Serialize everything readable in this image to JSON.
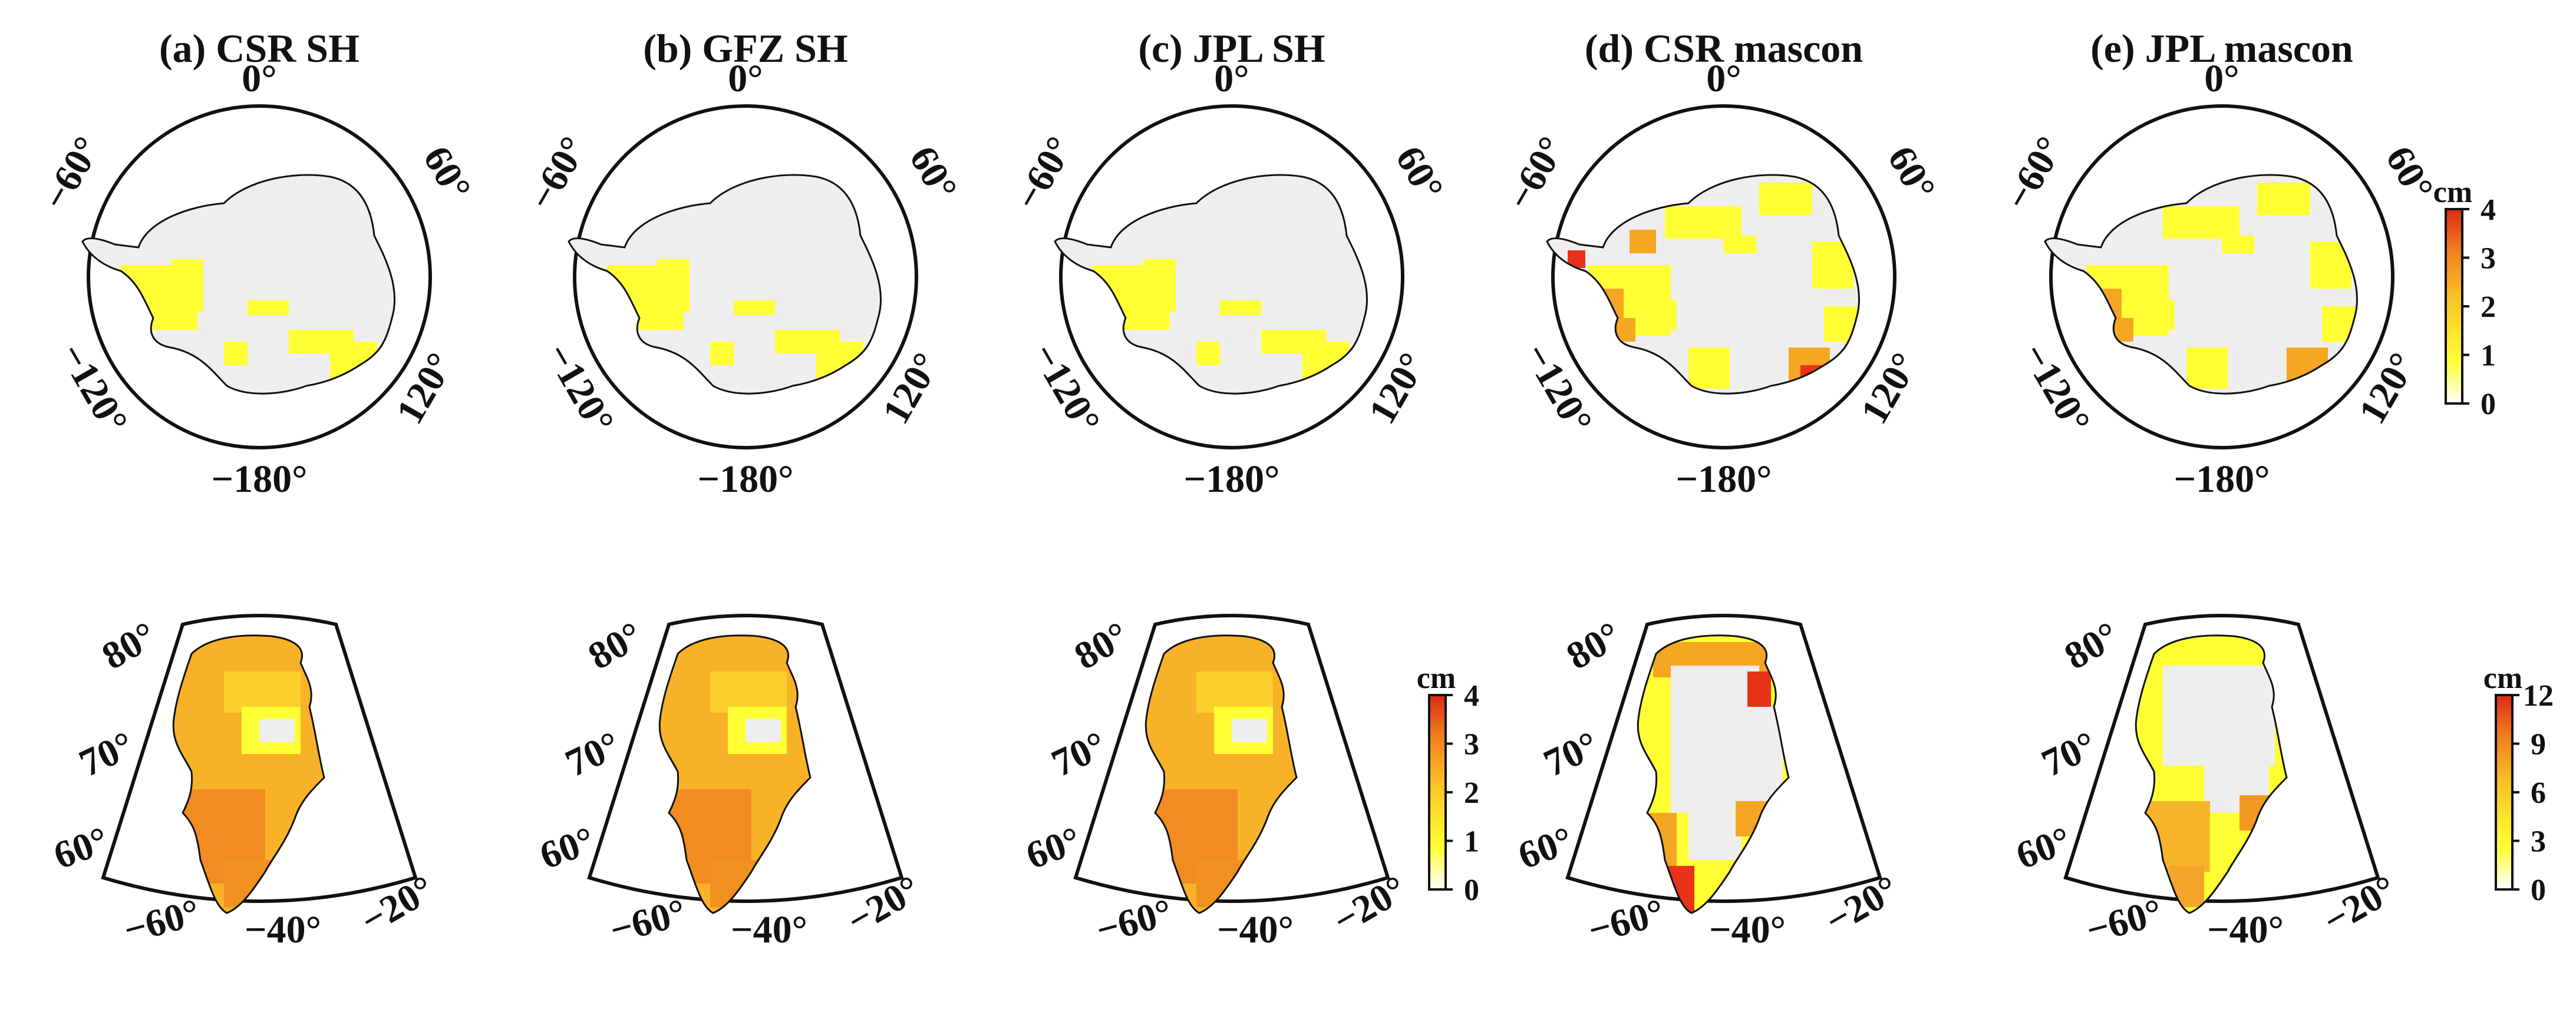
{
  "panels": [
    {
      "title": "(a) CSR SH",
      "antarctica_cmap": "sh",
      "greenland_cmap": "sh",
      "greenland_scale": 4
    },
    {
      "title": "(b) GFZ SH",
      "antarctica_cmap": "sh",
      "greenland_cmap": "sh",
      "greenland_scale": 4
    },
    {
      "title": "(c) JPL SH",
      "antarctica_cmap": "sh",
      "greenland_cmap": "sh",
      "greenland_scale": 4
    },
    {
      "title": "(d) CSR mascon",
      "antarctica_cmap": "mascon",
      "greenland_cmap": "mascon",
      "greenland_scale": 12
    },
    {
      "title": "(e) JPL mascon",
      "antarctica_cmap": "mascon_jpl",
      "greenland_cmap": "mascon_jpl",
      "greenland_scale": 12
    }
  ],
  "antarctica_labels": {
    "top": "0°",
    "left": "−60°",
    "right": "60°",
    "lower_left": "−120°",
    "lower_right": "120°",
    "bottom": "−180°"
  },
  "greenland_labels": {
    "lat_80": "80°",
    "lat_70": "70°",
    "lat_60": "60°",
    "lon_m60": "−60°",
    "lon_m40": "−40°",
    "lon_m20": "−20°"
  },
  "colorbars": [
    {
      "unit": "cm",
      "min": 0,
      "max": 4,
      "ticks": [
        "0",
        "1",
        "2",
        "3",
        "4"
      ]
    },
    {
      "unit": "cm",
      "min": 0,
      "max": 4,
      "ticks": [
        "0",
        "1",
        "2",
        "3",
        "4"
      ]
    },
    {
      "unit": "cm",
      "min": 0,
      "max": 12,
      "ticks": [
        "0",
        "3",
        "6",
        "9",
        "12"
      ]
    }
  ],
  "colors": {
    "ice_gray": "#eeeeee",
    "outline": "#111111",
    "white": "#ffffff",
    "yellow": "#ffff33",
    "orange": "#f5a623",
    "red": "#e8321a"
  }
}
